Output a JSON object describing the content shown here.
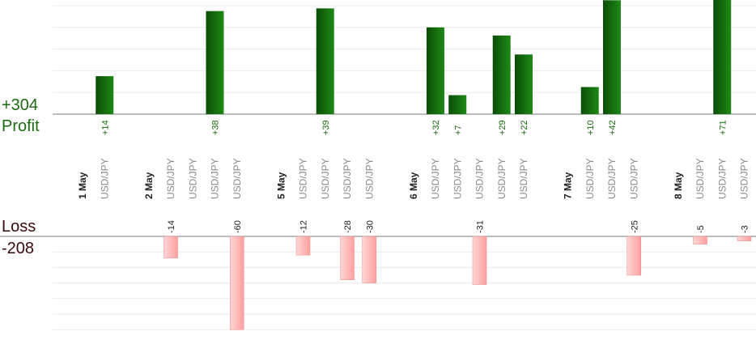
{
  "summary": {
    "profit_total": "+304",
    "profit_label": "Profit",
    "loss_label": "Loss",
    "loss_total": "-208"
  },
  "colors": {
    "profit_bar_dark": "#0b4d07",
    "profit_bar_light": "#1e8a16",
    "profit_text": "#1b6b10",
    "loss_bar_light": "#ffd6d6",
    "loss_bar_dark": "#ff9f9f",
    "loss_bar_edge": "#e88a8a",
    "gridline": "#ebebeb",
    "baseline": "#7a7a7a",
    "date_text": "#222222",
    "symbol_text": "#8a8a8a"
  },
  "chart_data": {
    "type": "bar",
    "description_rows": "Each column is either a date separator or a USD/JPY trade; profit bars go up from the top baseline, loss bars go down from the bottom baseline",
    "columns": [
      {
        "kind": "date",
        "label": "1 May"
      },
      {
        "kind": "trade",
        "symbol": "USD/JPY",
        "profit": 14,
        "profit_label": "+14"
      },
      {
        "kind": "spacer"
      },
      {
        "kind": "date",
        "label": "2 May"
      },
      {
        "kind": "trade",
        "symbol": "USD/JPY",
        "loss": -14,
        "loss_label": "-14"
      },
      {
        "kind": "trade",
        "symbol": "USD/JPY"
      },
      {
        "kind": "trade",
        "symbol": "USD/JPY",
        "profit": 38,
        "profit_label": "+38"
      },
      {
        "kind": "trade",
        "symbol": "USD/JPY",
        "loss": -60,
        "loss_label": "-60"
      },
      {
        "kind": "spacer"
      },
      {
        "kind": "date",
        "label": "5 May"
      },
      {
        "kind": "trade",
        "symbol": "USD/JPY",
        "loss": -12,
        "loss_label": "-12"
      },
      {
        "kind": "trade",
        "symbol": "USD/JPY",
        "profit": 39,
        "profit_label": "+39"
      },
      {
        "kind": "trade",
        "symbol": "USD/JPY",
        "loss": -28,
        "loss_label": "-28"
      },
      {
        "kind": "trade",
        "symbol": "USD/JPY",
        "loss": -30,
        "loss_label": "-30"
      },
      {
        "kind": "spacer"
      },
      {
        "kind": "date",
        "label": "6 May"
      },
      {
        "kind": "trade",
        "symbol": "USD/JPY",
        "profit": 32,
        "profit_label": "+32"
      },
      {
        "kind": "trade",
        "symbol": "USD/JPY",
        "profit": 7,
        "profit_label": "+7"
      },
      {
        "kind": "trade",
        "symbol": "USD/JPY",
        "loss": -31,
        "loss_label": "-31"
      },
      {
        "kind": "trade",
        "symbol": "USD/JPY",
        "profit": 29,
        "profit_label": "+29"
      },
      {
        "kind": "trade",
        "symbol": "USD/JPY",
        "profit": 22,
        "profit_label": "+22"
      },
      {
        "kind": "spacer"
      },
      {
        "kind": "date",
        "label": "7 May"
      },
      {
        "kind": "trade",
        "symbol": "USD/JPY",
        "profit": 10,
        "profit_label": "+10"
      },
      {
        "kind": "trade",
        "symbol": "USD/JPY",
        "profit": 42,
        "profit_label": "+42"
      },
      {
        "kind": "trade",
        "symbol": "USD/JPY",
        "loss": -25,
        "loss_label": "-25"
      },
      {
        "kind": "spacer"
      },
      {
        "kind": "date",
        "label": "8 May"
      },
      {
        "kind": "trade",
        "symbol": "USD/JPY",
        "loss": -5,
        "loss_label": "-5"
      },
      {
        "kind": "trade",
        "symbol": "USD/JPY",
        "profit": 71,
        "profit_label": "+71"
      },
      {
        "kind": "trade",
        "symbol": "USD/JPY",
        "loss": -3,
        "loss_label": "-3"
      }
    ],
    "profit_axis": {
      "range": [
        0,
        40
      ],
      "gridlines_every": 8
    },
    "loss_axis": {
      "range": [
        -60,
        0
      ],
      "gridlines_every": 10
    },
    "grid": true
  }
}
